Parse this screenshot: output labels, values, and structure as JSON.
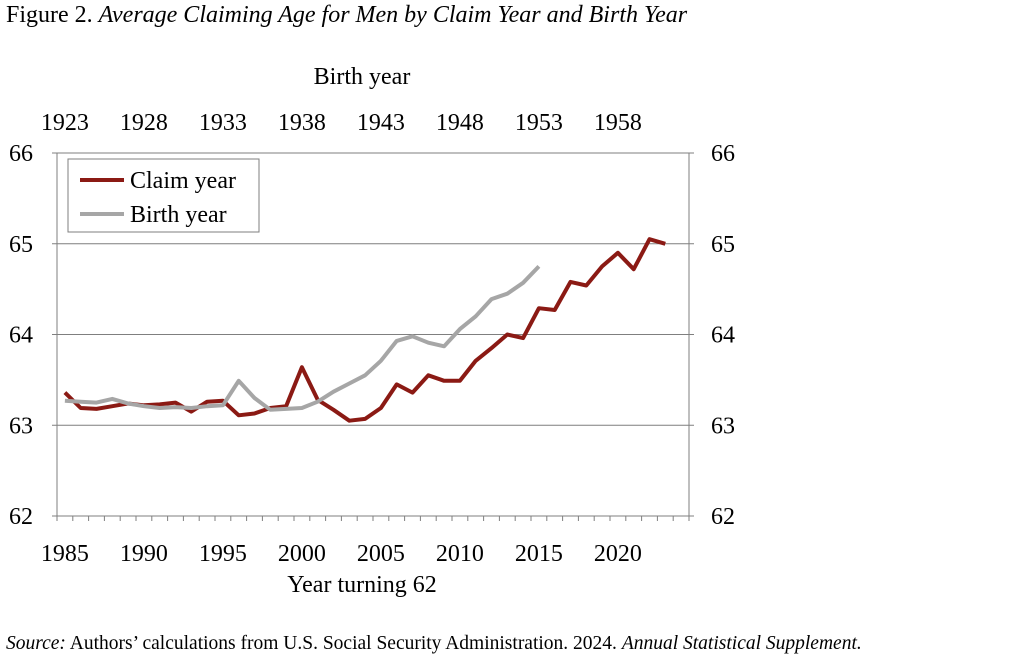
{
  "figure": {
    "label": "Figure 2.",
    "title": "Average Claiming Age for Men by Claim Year and Birth Year"
  },
  "source": {
    "label": "Source:",
    "text": "Authors’ calculations from U.S. Social Security Administration. 2024.",
    "publication": "Annual Statistical Supplement."
  },
  "chart_data": {
    "type": "line",
    "xlabel": "Year turning 62",
    "x2label": "Birth year",
    "xlim": [
      1985,
      2024
    ],
    "ylim": [
      62,
      66
    ],
    "x_ticks": [
      "1985",
      "1990",
      "1995",
      "2000",
      "2005",
      "2010",
      "2015",
      "2020"
    ],
    "x2_ticks": [
      "1923",
      "1928",
      "1933",
      "1938",
      "1943",
      "1948",
      "1953",
      "1958"
    ],
    "y_ticks": [
      "62",
      "63",
      "64",
      "65",
      "66"
    ],
    "y_ticks_right": [
      "62",
      "63",
      "64",
      "65",
      "66"
    ],
    "grid": "horizontal",
    "legend_position": "top-left",
    "series": [
      {
        "name": "Claim year",
        "color": "#8b1a14",
        "x": [
          1985,
          1986,
          1987,
          1988,
          1989,
          1990,
          1991,
          1992,
          1993,
          1994,
          1995,
          1996,
          1997,
          1998,
          1999,
          2000,
          2001,
          2002,
          2003,
          2004,
          2005,
          2006,
          2007,
          2008,
          2009,
          2010,
          2011,
          2012,
          2013,
          2014,
          2015,
          2016,
          2017,
          2018,
          2019,
          2020,
          2021,
          2022,
          2023
        ],
        "values": [
          63.36,
          63.19,
          63.18,
          63.21,
          63.24,
          63.22,
          63.23,
          63.25,
          63.15,
          63.26,
          63.27,
          63.11,
          63.13,
          63.19,
          63.21,
          63.64,
          63.28,
          63.17,
          63.05,
          63.07,
          63.19,
          63.45,
          63.36,
          63.55,
          63.49,
          63.49,
          63.71,
          63.85,
          64.0,
          63.96,
          64.29,
          64.27,
          64.58,
          64.54,
          64.75,
          64.9,
          64.72,
          65.05,
          65.0
        ]
      },
      {
        "name": "Birth year",
        "color": "#a6a6a6",
        "x": [
          1985,
          1986,
          1987,
          1988,
          1989,
          1990,
          1991,
          1992,
          1993,
          1994,
          1995,
          1996,
          1997,
          1998,
          1999,
          2000,
          2001,
          2002,
          2003,
          2004,
          2005,
          2006,
          2007,
          2008,
          2009,
          2010,
          2011,
          2012,
          2013,
          2014,
          2015
        ],
        "values": [
          63.27,
          63.26,
          63.25,
          63.29,
          63.24,
          63.21,
          63.19,
          63.2,
          63.19,
          63.21,
          63.22,
          63.49,
          63.3,
          63.17,
          63.18,
          63.19,
          63.26,
          63.37,
          63.46,
          63.55,
          63.71,
          63.93,
          63.98,
          63.91,
          63.87,
          64.06,
          64.2,
          64.39,
          64.45,
          64.57,
          64.75
        ]
      }
    ]
  }
}
